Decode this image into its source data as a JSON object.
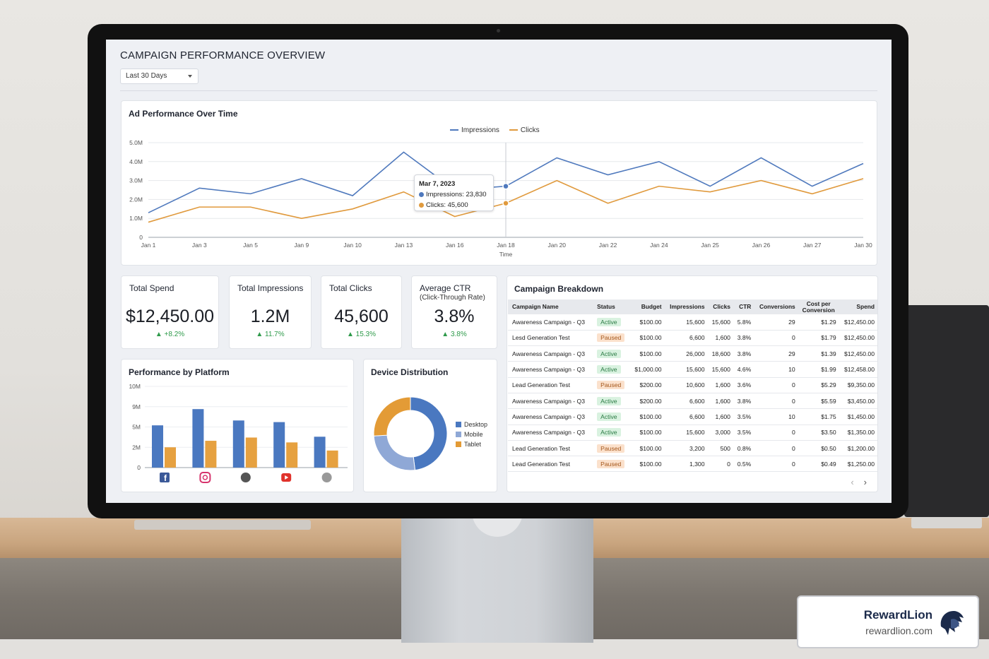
{
  "dashboard": {
    "title": "CAMPAIGN PERFORMANCE OVERVIEW",
    "date_range": "Last 30 Days"
  },
  "line_chart": {
    "title": "Ad Performance Over Time",
    "legend": [
      "Impressions",
      "Clicks"
    ],
    "tooltip": {
      "date": "Mar 7, 2023",
      "impressions": "Impressions: 23,830",
      "clicks": "Clicks: 45,600"
    }
  },
  "kpis": [
    {
      "label": "Total Spend",
      "sub": "",
      "value": "$12,450.00",
      "change": "▲ +8.2%"
    },
    {
      "label": "Total Impressions",
      "sub": "",
      "value": "1.2M",
      "change": "▲ 11.7%"
    },
    {
      "label": "Total Clicks",
      "sub": "",
      "value": "45,600",
      "change": "▲ 15.3%"
    },
    {
      "label": "Average CTR",
      "sub": "(Click-Through Rate)",
      "value": "3.8%",
      "change": "▲ 3.8%"
    }
  ],
  "bar_chart": {
    "title": "Performance by Platform",
    "platforms": [
      "facebook-icon",
      "instagram-icon",
      "platform-3-icon",
      "youtube-icon",
      "platform-5-icon"
    ]
  },
  "device": {
    "title": "Device Distribution",
    "legend": [
      "Desktop",
      "Mobile",
      "Tablet"
    ]
  },
  "campaigns": {
    "title": "Campaign Breakdown",
    "columns": [
      "Campaign Name",
      "Status",
      "Budget",
      "Impressions",
      "Clicks",
      "CTR",
      "Conversions",
      "Cost per Conversion",
      "Spend"
    ],
    "rows": [
      [
        "Awareness Campaign - Q3",
        "Active",
        "$100.00",
        "15,600",
        "15,600",
        "5.8%",
        "29",
        "$1.29",
        "$12,450.00"
      ],
      [
        "Lesd Generation Test",
        "Paused",
        "$100.00",
        "6,600",
        "1,600",
        "3.8%",
        "0",
        "$1.79",
        "$12,450.00"
      ],
      [
        "Awareness Campaign - Q3",
        "Active",
        "$100.00",
        "26,000",
        "18,600",
        "3.8%",
        "29",
        "$1.39",
        "$12,450.00"
      ],
      [
        "Awareness Campaign - Q3",
        "Active",
        "$1,000.00",
        "15,600",
        "15,600",
        "4.6%",
        "10",
        "$1.99",
        "$12,458.00"
      ],
      [
        "Lead Generation Test",
        "Paused",
        "$200.00",
        "10,600",
        "1,600",
        "3.6%",
        "0",
        "$5.29",
        "$9,350.00"
      ],
      [
        "Awareness Campaign - Q3",
        "Active",
        "$200.00",
        "6,600",
        "1,600",
        "3.8%",
        "0",
        "$5.59",
        "$3,450.00"
      ],
      [
        "Awareness Campaign - Q3",
        "Active",
        "$100.00",
        "6,600",
        "1,600",
        "3.5%",
        "10",
        "$1.75",
        "$1,450.00"
      ],
      [
        "Awareness Campaign - Q3",
        "Active",
        "$100.00",
        "15,600",
        "3,000",
        "3.5%",
        "0",
        "$3.50",
        "$1,350.00"
      ],
      [
        "Lead Generation Test",
        "Paused",
        "$100.00",
        "3,200",
        "500",
        "0.8%",
        "0",
        "$0.50",
        "$1,200.00"
      ],
      [
        "Lead Generation Test",
        "Paused",
        "$100.00",
        "1,300",
        "0",
        "0.5%",
        "0",
        "$0.49",
        "$1,250.00"
      ]
    ],
    "pager_prev": "‹",
    "pager_next": "›"
  },
  "brand": {
    "name": "RewardLion",
    "url": "rewardlion.com"
  },
  "colors": {
    "impressions": "#4f79bd",
    "clicks": "#e09a3d",
    "desktop": "#4a78c0",
    "mobile": "#8fa8d6",
    "tablet": "#e39b36",
    "active_bg": "#d9f2e0",
    "paused_bg": "#fbe1cc"
  },
  "chart_data": [
    {
      "type": "line",
      "title": "Ad Performance Over Time",
      "xlabel": "Time",
      "ylabel": "",
      "ylim": [
        0,
        5000000
      ],
      "yticks": [
        "0",
        "1.0M",
        "2.0M",
        "3.0M",
        "4.0M",
        "5.0M"
      ],
      "x": [
        "Jan 1",
        "Jan 3",
        "Jan 5",
        "Jan 9",
        "Jan 10",
        "Jan 13",
        "Jan 16",
        "Jan 18",
        "Jan 20",
        "Jan 22",
        "Jan 24",
        "Jan 25",
        "Jan 26",
        "Jan 27",
        "Jan 30"
      ],
      "series": [
        {
          "name": "Impressions",
          "values": [
            1300000,
            2600000,
            2300000,
            3100000,
            2200000,
            4500000,
            2500000,
            2700000,
            4200000,
            3300000,
            4000000,
            2700000,
            4200000,
            2700000,
            3900000
          ]
        },
        {
          "name": "Clicks",
          "values": [
            800000,
            1600000,
            1600000,
            1000000,
            1500000,
            2400000,
            1100000,
            1800000,
            3000000,
            1800000,
            2700000,
            2400000,
            3000000,
            2300000,
            3100000
          ]
        }
      ],
      "grid": true,
      "legend": "top-center"
    },
    {
      "type": "bar",
      "title": "Performance by Platform",
      "categories": [
        "facebook-icon",
        "instagram-icon",
        "platform-3-icon",
        "youtube-icon",
        "platform-5-icon"
      ],
      "yticks": [
        "0",
        "2M",
        "5M",
        "9M",
        "10M"
      ],
      "ylim": [
        0,
        10000000
      ],
      "series": [
        {
          "name": "",
          "values": [
            5200000,
            7200000,
            5800000,
            5600000,
            3800000
          ]
        },
        {
          "name": "",
          "values": [
            2500000,
            3300000,
            3700000,
            3100000,
            2100000
          ]
        }
      ],
      "grid": true
    },
    {
      "type": "pie",
      "title": "Device Distribution",
      "categories": [
        "Desktop",
        "Mobile",
        "Tablet"
      ],
      "values": [
        48,
        26,
        26
      ],
      "donut": true,
      "legend": "right"
    }
  ]
}
